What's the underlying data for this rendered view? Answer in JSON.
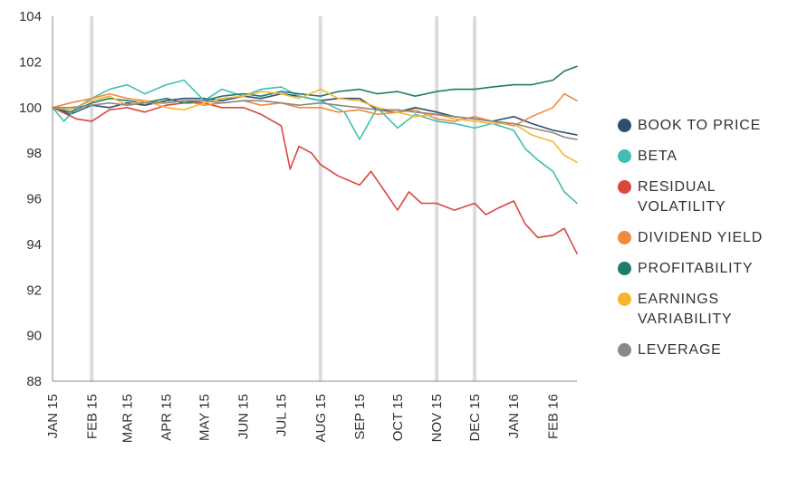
{
  "chart_data": {
    "type": "line",
    "title": "",
    "xlabel": "",
    "ylabel": "",
    "ylim": [
      88,
      104
    ],
    "yticks": [
      88,
      90,
      92,
      94,
      96,
      98,
      100,
      102,
      104
    ],
    "xlim": [
      "2015-01-01",
      "2016-02-20"
    ],
    "xtick_labels": [
      "JAN 15",
      "FEB 15",
      "MAR 15",
      "APR 15",
      "MAY 15",
      "JUN 15",
      "JUL 15",
      "AUG 15",
      "SEP 15",
      "OCT 15",
      "NOV 15",
      "DEC 15",
      "JAN 16",
      "FEB 16"
    ],
    "xtick_dates": [
      "2015-01-01",
      "2015-02-01",
      "2015-03-01",
      "2015-04-01",
      "2015-05-01",
      "2015-06-01",
      "2015-07-01",
      "2015-08-01",
      "2015-09-01",
      "2015-10-01",
      "2015-11-01",
      "2015-12-01",
      "2016-01-01",
      "2016-02-01"
    ],
    "vertical_markers": [
      "2015-02-01",
      "2015-08-01",
      "2015-11-01",
      "2015-12-01"
    ],
    "grid": false,
    "legend_position": "right",
    "series": [
      {
        "name": "BOOK TO PRICE",
        "color": "#2e4e6e",
        "x": [
          "2015-01-01",
          "2015-01-15",
          "2015-02-01",
          "2015-02-15",
          "2015-03-01",
          "2015-03-15",
          "2015-04-01",
          "2015-04-15",
          "2015-05-01",
          "2015-05-15",
          "2015-06-01",
          "2015-06-15",
          "2015-07-01",
          "2015-07-15",
          "2015-08-01",
          "2015-08-15",
          "2015-09-01",
          "2015-09-15",
          "2015-10-01",
          "2015-10-15",
          "2015-11-01",
          "2015-11-15",
          "2015-12-01",
          "2015-12-15",
          "2016-01-01",
          "2016-01-15",
          "2016-02-01",
          "2016-02-20"
        ],
        "y": [
          100.0,
          99.7,
          100.1,
          100.0,
          100.2,
          100.1,
          100.3,
          100.4,
          100.4,
          100.3,
          100.5,
          100.4,
          100.6,
          100.5,
          100.3,
          100.4,
          100.4,
          99.9,
          99.8,
          100.0,
          99.8,
          99.6,
          99.5,
          99.4,
          99.6,
          99.3,
          99.0,
          98.8
        ]
      },
      {
        "name": "BETA",
        "color": "#3fbfb5",
        "x": [
          "2015-01-01",
          "2015-01-10",
          "2015-01-20",
          "2015-02-01",
          "2015-02-15",
          "2015-03-01",
          "2015-03-15",
          "2015-04-01",
          "2015-04-15",
          "2015-05-01",
          "2015-05-15",
          "2015-06-01",
          "2015-06-15",
          "2015-07-01",
          "2015-07-15",
          "2015-08-01",
          "2015-08-20",
          "2015-09-01",
          "2015-09-15",
          "2015-10-01",
          "2015-10-15",
          "2015-11-01",
          "2015-11-15",
          "2015-12-01",
          "2015-12-15",
          "2016-01-01",
          "2016-01-10",
          "2016-01-20",
          "2016-02-01",
          "2016-02-10",
          "2016-02-20"
        ],
        "y": [
          100.0,
          99.4,
          100.0,
          100.4,
          100.8,
          101.0,
          100.6,
          101.0,
          101.2,
          100.3,
          100.8,
          100.5,
          100.8,
          100.9,
          100.5,
          100.3,
          99.8,
          98.6,
          100.0,
          99.1,
          99.7,
          99.4,
          99.3,
          99.1,
          99.3,
          99.0,
          98.2,
          97.7,
          97.2,
          96.3,
          95.8
        ]
      },
      {
        "name": "RESIDUAL\nVOLATILITY",
        "color": "#d9473f",
        "x": [
          "2015-01-01",
          "2015-01-20",
          "2015-02-01",
          "2015-02-15",
          "2015-03-01",
          "2015-03-15",
          "2015-04-01",
          "2015-04-15",
          "2015-05-01",
          "2015-05-15",
          "2015-06-01",
          "2015-06-15",
          "2015-07-01",
          "2015-07-08",
          "2015-07-15",
          "2015-07-25",
          "2015-08-01",
          "2015-08-15",
          "2015-09-01",
          "2015-09-10",
          "2015-09-20",
          "2015-10-01",
          "2015-10-10",
          "2015-10-20",
          "2015-11-01",
          "2015-11-15",
          "2015-12-01",
          "2015-12-10",
          "2015-12-20",
          "2016-01-01",
          "2016-01-10",
          "2016-01-20",
          "2016-02-01",
          "2016-02-10",
          "2016-02-20"
        ],
        "y": [
          100.0,
          99.5,
          99.4,
          99.9,
          100.0,
          99.8,
          100.1,
          100.2,
          100.2,
          100.0,
          100.0,
          99.7,
          99.2,
          97.3,
          98.3,
          98.0,
          97.5,
          97.0,
          96.6,
          97.2,
          96.4,
          95.5,
          96.3,
          95.8,
          95.8,
          95.5,
          95.8,
          95.3,
          95.6,
          95.9,
          94.9,
          94.3,
          94.4,
          94.7,
          93.6
        ]
      },
      {
        "name": "DIVIDEND YIELD",
        "color": "#f08a3c",
        "x": [
          "2015-01-01",
          "2015-01-15",
          "2015-02-01",
          "2015-02-15",
          "2015-03-01",
          "2015-03-15",
          "2015-04-01",
          "2015-04-15",
          "2015-05-01",
          "2015-05-15",
          "2015-06-01",
          "2015-06-15",
          "2015-07-01",
          "2015-07-15",
          "2015-08-01",
          "2015-08-15",
          "2015-09-01",
          "2015-09-15",
          "2015-10-01",
          "2015-10-15",
          "2015-11-01",
          "2015-11-15",
          "2015-12-01",
          "2015-12-15",
          "2016-01-01",
          "2016-01-15",
          "2016-02-01",
          "2016-02-10",
          "2016-02-20"
        ],
        "y": [
          100.0,
          100.2,
          100.4,
          100.6,
          100.4,
          100.3,
          100.2,
          100.3,
          100.1,
          100.2,
          100.3,
          100.1,
          100.2,
          100.0,
          100.0,
          99.8,
          99.9,
          99.7,
          99.8,
          99.9,
          99.5,
          99.4,
          99.6,
          99.4,
          99.2,
          99.6,
          100.0,
          100.6,
          100.3
        ]
      },
      {
        "name": "PROFITABILITY",
        "color": "#1f7a6a",
        "x": [
          "2015-01-01",
          "2015-01-15",
          "2015-02-01",
          "2015-02-15",
          "2015-03-01",
          "2015-03-15",
          "2015-04-01",
          "2015-04-15",
          "2015-05-01",
          "2015-05-15",
          "2015-06-01",
          "2015-06-15",
          "2015-07-01",
          "2015-07-15",
          "2015-08-01",
          "2015-08-15",
          "2015-09-01",
          "2015-09-15",
          "2015-10-01",
          "2015-10-15",
          "2015-11-01",
          "2015-11-15",
          "2015-12-01",
          "2015-12-15",
          "2016-01-01",
          "2016-01-15",
          "2016-02-01",
          "2016-02-10",
          "2016-02-20"
        ],
        "y": [
          100.0,
          99.8,
          100.2,
          100.4,
          100.3,
          100.2,
          100.4,
          100.2,
          100.3,
          100.5,
          100.6,
          100.5,
          100.7,
          100.6,
          100.5,
          100.7,
          100.8,
          100.6,
          100.7,
          100.5,
          100.7,
          100.8,
          100.8,
          100.9,
          101.0,
          101.0,
          101.2,
          101.6,
          101.8
        ]
      },
      {
        "name": "EARNINGS\nVARIABILITY",
        "color": "#f7b52c",
        "x": [
          "2015-01-01",
          "2015-01-15",
          "2015-02-01",
          "2015-02-15",
          "2015-03-01",
          "2015-03-15",
          "2015-04-01",
          "2015-04-15",
          "2015-05-01",
          "2015-05-15",
          "2015-06-01",
          "2015-06-15",
          "2015-07-01",
          "2015-07-15",
          "2015-08-01",
          "2015-08-15",
          "2015-09-01",
          "2015-09-15",
          "2015-10-01",
          "2015-10-15",
          "2015-11-01",
          "2015-11-15",
          "2015-12-01",
          "2015-12-15",
          "2016-01-01",
          "2016-01-15",
          "2016-02-01",
          "2016-02-10",
          "2016-02-20"
        ],
        "y": [
          100.0,
          99.9,
          100.3,
          100.5,
          100.1,
          100.3,
          100.0,
          99.9,
          100.2,
          100.4,
          100.5,
          100.7,
          100.6,
          100.4,
          100.8,
          100.4,
          100.3,
          100.0,
          99.8,
          99.6,
          99.7,
          99.5,
          99.4,
          99.3,
          99.3,
          98.8,
          98.5,
          97.9,
          97.6
        ]
      },
      {
        "name": "LEVERAGE",
        "color": "#8f8783",
        "x": [
          "2015-01-01",
          "2015-01-15",
          "2015-02-01",
          "2015-02-15",
          "2015-03-01",
          "2015-03-15",
          "2015-04-01",
          "2015-04-15",
          "2015-05-01",
          "2015-05-15",
          "2015-06-01",
          "2015-06-15",
          "2015-07-01",
          "2015-07-15",
          "2015-08-01",
          "2015-08-15",
          "2015-09-01",
          "2015-09-15",
          "2015-10-01",
          "2015-10-15",
          "2015-11-01",
          "2015-11-15",
          "2015-12-01",
          "2015-12-15",
          "2016-01-01",
          "2016-01-15",
          "2016-02-01",
          "2016-02-10",
          "2016-02-20"
        ],
        "y": [
          100.0,
          100.0,
          100.1,
          100.2,
          100.1,
          100.2,
          100.2,
          100.3,
          100.3,
          100.2,
          100.3,
          100.3,
          100.2,
          100.1,
          100.2,
          100.1,
          100.0,
          99.9,
          99.9,
          99.8,
          99.7,
          99.6,
          99.5,
          99.4,
          99.3,
          99.1,
          98.9,
          98.7,
          98.6
        ]
      }
    ]
  }
}
